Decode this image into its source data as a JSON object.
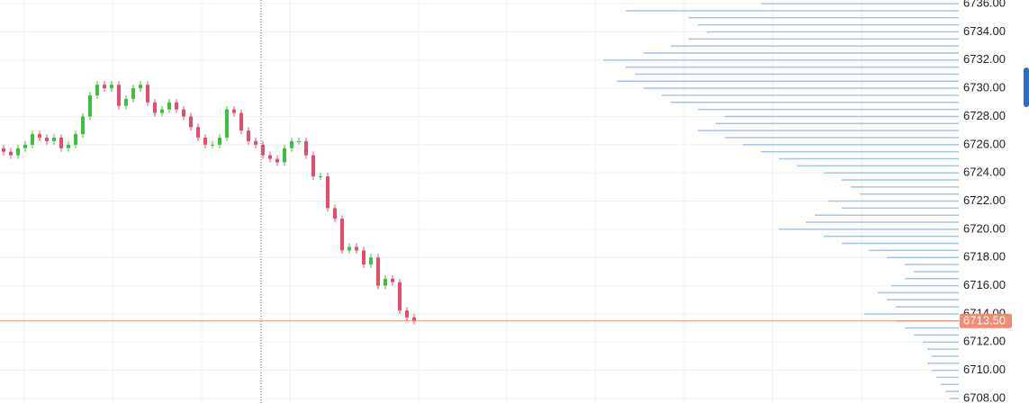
{
  "chart_data": [
    {
      "type": "candlestick",
      "open": [
        6725.75,
        6725.5,
        6725.25,
        6725.75,
        6726.0,
        6726.75,
        6726.5,
        6726.25,
        6726.5,
        6725.75,
        6726.0,
        6726.75,
        6728.0,
        6729.5,
        6730.25,
        6730.0,
        6730.25,
        6728.75,
        6729.25,
        6730.0,
        6730.25,
        6729.0,
        6728.25,
        6728.5,
        6729.0,
        6728.5,
        6728.0,
        6727.25,
        6726.5,
        6726.0,
        6726.0,
        6726.5,
        6728.5,
        6728.25,
        6727.0,
        6726.25,
        6726.0,
        6725.25,
        6725.0,
        6724.75,
        6725.75,
        6726.25,
        6726.25,
        6725.25,
        6723.75,
        6723.75,
        6721.5,
        6720.75,
        6718.5,
        6718.75,
        6718.5,
        6717.5,
        6718.0,
        6716.0,
        6716.5,
        6716.25,
        6714.25,
        6713.75
      ],
      "high": [
        6726.0,
        6725.75,
        6726.0,
        6726.25,
        6727.0,
        6727.0,
        6726.75,
        6726.75,
        6726.75,
        6726.25,
        6727.0,
        6728.25,
        6729.75,
        6730.5,
        6730.5,
        6730.5,
        6730.5,
        6729.5,
        6730.25,
        6730.5,
        6730.5,
        6729.25,
        6728.75,
        6729.25,
        6729.25,
        6728.75,
        6728.25,
        6727.5,
        6726.75,
        6726.25,
        6726.75,
        6728.75,
        6728.75,
        6728.5,
        6727.25,
        6726.5,
        6726.25,
        6725.5,
        6725.25,
        6726.0,
        6726.5,
        6726.5,
        6726.5,
        6725.5,
        6724.0,
        6724.0,
        6721.75,
        6721.0,
        6719.0,
        6719.0,
        6718.75,
        6718.25,
        6718.25,
        6716.75,
        6716.75,
        6716.5,
        6714.5,
        6714.0
      ],
      "low": [
        6725.25,
        6725.0,
        6725.0,
        6725.5,
        6725.75,
        6726.25,
        6726.0,
        6726.0,
        6725.5,
        6725.5,
        6725.75,
        6726.5,
        6727.75,
        6729.25,
        6729.75,
        6729.75,
        6728.5,
        6728.5,
        6729.0,
        6729.75,
        6728.75,
        6728.0,
        6728.0,
        6728.25,
        6728.25,
        6727.75,
        6727.0,
        6726.25,
        6725.75,
        6725.75,
        6725.75,
        6726.25,
        6728.0,
        6726.75,
        6726.0,
        6725.75,
        6725.0,
        6724.75,
        6724.5,
        6724.5,
        6725.5,
        6726.0,
        6725.0,
        6723.5,
        6723.5,
        6721.25,
        6720.5,
        6718.25,
        6718.25,
        6718.25,
        6717.25,
        6717.25,
        6715.75,
        6715.75,
        6716.0,
        6714.0,
        6713.5,
        6713.25
      ],
      "close": [
        6725.5,
        6725.25,
        6725.75,
        6726.0,
        6726.75,
        6726.5,
        6726.25,
        6726.5,
        6725.75,
        6726.0,
        6726.75,
        6728.0,
        6729.5,
        6730.25,
        6730.0,
        6730.25,
        6728.75,
        6729.25,
        6730.0,
        6730.25,
        6729.0,
        6728.25,
        6728.5,
        6729.0,
        6728.5,
        6728.0,
        6727.25,
        6726.5,
        6726.0,
        6726.0,
        6726.5,
        6728.5,
        6728.25,
        6727.0,
        6726.25,
        6726.0,
        6725.25,
        6725.0,
        6724.75,
        6725.75,
        6726.25,
        6726.25,
        6725.25,
        6723.75,
        6723.75,
        6721.5,
        6720.75,
        6718.5,
        6718.75,
        6718.5,
        6717.5,
        6718.0,
        6716.0,
        6716.5,
        6716.25,
        6714.25,
        6713.75,
        6713.5
      ],
      "up_color": "#3fbf3f",
      "down_color": "#e0506a",
      "last_price": 6713.5,
      "last_price_label": "6713.50",
      "last_price_color": "#f08a72",
      "ylim": [
        6707.68,
        6736.26
      ],
      "yticks": [
        {
          "value": 6708,
          "label": "6708.00"
        },
        {
          "value": 6710,
          "label": "6710.00"
        },
        {
          "value": 6712,
          "label": "6712.00"
        },
        {
          "value": 6714,
          "label": "6714.00"
        },
        {
          "value": 6716,
          "label": "6716.00"
        },
        {
          "value": 6718,
          "label": "6718.00"
        },
        {
          "value": 6720,
          "label": "6720.00"
        },
        {
          "value": 6722,
          "label": "6722.00"
        },
        {
          "value": 6724,
          "label": "6724.00"
        },
        {
          "value": 6726,
          "label": "6726.00"
        },
        {
          "value": 6728,
          "label": "6728.00"
        },
        {
          "value": 6730,
          "label": "6730.00"
        },
        {
          "value": 6732,
          "label": "6732.00"
        },
        {
          "value": 6734,
          "label": "6734.00"
        },
        {
          "value": 6736,
          "label": "6736.00"
        }
      ],
      "grid": true
    },
    {
      "type": "volume-profile",
      "levels": [
        6736.0,
        6735.5,
        6735.0,
        6734.5,
        6734.0,
        6733.5,
        6733.0,
        6732.5,
        6732.0,
        6731.5,
        6731.0,
        6730.5,
        6730.0,
        6729.5,
        6729.0,
        6728.5,
        6728.0,
        6727.5,
        6727.0,
        6726.5,
        6726.0,
        6725.5,
        6725.0,
        6724.5,
        6724.0,
        6723.5,
        6723.0,
        6722.5,
        6722.0,
        6721.5,
        6721.0,
        6720.5,
        6720.0,
        6719.5,
        6719.0,
        6718.5,
        6718.0,
        6717.5,
        6717.0,
        6716.5,
        6716.0,
        6715.5,
        6715.0,
        6714.5,
        6714.0,
        6713.5,
        6713.0,
        6712.5,
        6712.0,
        6711.5,
        6711.0,
        6710.5,
        6710.0,
        6709.5,
        6709.0,
        6708.5,
        6708.0
      ],
      "values": [
        220,
        370,
        300,
        290,
        280,
        300,
        320,
        350,
        395,
        370,
        360,
        380,
        350,
        330,
        320,
        290,
        260,
        270,
        290,
        260,
        240,
        220,
        200,
        180,
        150,
        130,
        120,
        110,
        145,
        130,
        160,
        170,
        200,
        150,
        130,
        100,
        80,
        60,
        50,
        60,
        75,
        90,
        80,
        70,
        105,
        70,
        60,
        50,
        40,
        35,
        30,
        35,
        30,
        25,
        20,
        15,
        10
      ],
      "xlim": [
        0,
        400
      ],
      "color": "#a9c2ea"
    }
  ]
}
